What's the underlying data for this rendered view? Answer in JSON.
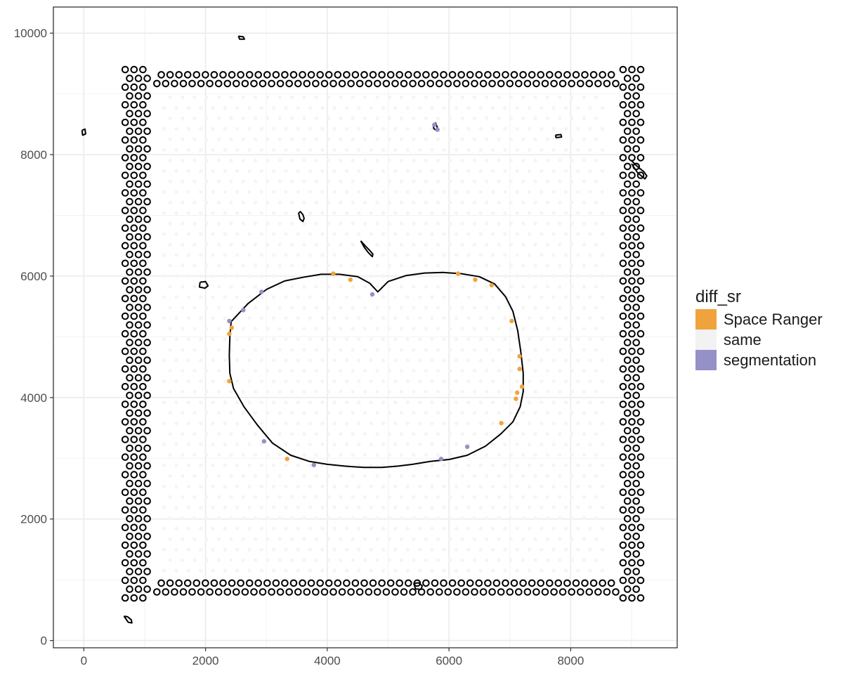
{
  "chart_data": {
    "type": "scatter",
    "title": "",
    "xlabel": "",
    "ylabel": "",
    "xlim": [
      -500,
      9750
    ],
    "ylim": [
      -120,
      10430
    ],
    "x_ticks": [
      0,
      2000,
      4000,
      6000,
      8000
    ],
    "y_ticks": [
      0,
      2000,
      4000,
      6000,
      8000,
      10000
    ],
    "x_tick_labels": [
      "0",
      "2000",
      "4000",
      "6000",
      "8000"
    ],
    "y_tick_labels": [
      "0",
      "2000",
      "4000",
      "6000",
      "8000",
      "10000"
    ],
    "grid": true,
    "legend": {
      "position": "right",
      "title": "diff_sr",
      "entries": [
        {
          "label": "Space Ranger",
          "color": "#F0A33C"
        },
        {
          "label": "same",
          "color": "#F4F4F4"
        },
        {
          "label": "segmentation",
          "color": "#9590C5"
        }
      ]
    },
    "spot_grid": {
      "x_range": [
        1320,
        8600
      ],
      "y_range": [
        1150,
        9020
      ],
      "spacing": 200,
      "category": "same",
      "color": "#F4F4F4"
    },
    "series": [
      {
        "name": "Space Ranger",
        "color": "#F0A33C",
        "points": [
          [
            4100,
            6040
          ],
          [
            4380,
            5940
          ],
          [
            6150,
            6040
          ],
          [
            6430,
            5940
          ],
          [
            6700,
            5850
          ],
          [
            7030,
            5260
          ],
          [
            7160,
            4680
          ],
          [
            7160,
            4470
          ],
          [
            7200,
            4180
          ],
          [
            7120,
            4080
          ],
          [
            7100,
            3980
          ],
          [
            6860,
            3580
          ],
          [
            2430,
            5150
          ],
          [
            2390,
            5050
          ],
          [
            2390,
            4270
          ],
          [
            3340,
            2990
          ]
        ]
      },
      {
        "name": "segmentation",
        "color": "#9590C5",
        "points": [
          [
            5760,
            8490
          ],
          [
            5810,
            8410
          ],
          [
            4740,
            5700
          ],
          [
            2920,
            5740
          ],
          [
            2620,
            5440
          ],
          [
            2390,
            5260
          ],
          [
            2960,
            3280
          ],
          [
            3780,
            2890
          ],
          [
            5870,
            2990
          ],
          [
            6300,
            3190
          ]
        ]
      }
    ],
    "outlines": [
      {
        "shape": "tissue-outline",
        "x": [
          2420,
          2700,
          3000,
          3300,
          3600,
          3900,
          4200,
          4500,
          4700,
          4830,
          5000,
          5300,
          5600,
          5900,
          6200,
          6500,
          6750,
          6930,
          7050,
          7130,
          7180,
          7220,
          7220,
          7170,
          7050,
          6850,
          6600,
          6300,
          6000,
          5700,
          5400,
          5150,
          4900,
          4600,
          4300,
          4000,
          3700,
          3400,
          3100,
          2850,
          2630,
          2460,
          2400,
          2390,
          2400,
          2420
        ],
        "y": [
          5250,
          5550,
          5780,
          5920,
          5980,
          6030,
          6030,
          5990,
          5880,
          5740,
          5910,
          6010,
          6050,
          6060,
          6040,
          5990,
          5870,
          5660,
          5420,
          5100,
          4750,
          4400,
          4100,
          3850,
          3600,
          3400,
          3200,
          3050,
          2980,
          2950,
          2900,
          2870,
          2850,
          2850,
          2870,
          2900,
          2950,
          3050,
          3250,
          3550,
          3850,
          4150,
          4400,
          4700,
          5000,
          5250
        ]
      },
      {
        "shape": "fragment",
        "x": [
          3530,
          3550,
          3600,
          3620,
          3600,
          3560,
          3530
        ],
        "y": [
          7040,
          6940,
          6900,
          6950,
          7010,
          7060,
          7040
        ]
      },
      {
        "shape": "fragment",
        "x": [
          4550,
          4620,
          4700,
          4750,
          4740,
          4680,
          4610,
          4550
        ],
        "y": [
          6580,
          6500,
          6420,
          6360,
          6320,
          6380,
          6470,
          6580
        ]
      },
      {
        "shape": "fragment",
        "x": [
          5740,
          5780,
          5810,
          5790,
          5750,
          5740
        ],
        "y": [
          8500,
          8520,
          8440,
          8400,
          8430,
          8500
        ]
      },
      {
        "shape": "fragment",
        "x": [
          2540,
          2620,
          2640,
          2560,
          2540
        ],
        "y": [
          9950,
          9940,
          9900,
          9900,
          9950
        ]
      },
      {
        "shape": "fragment",
        "x": [
          -30,
          20,
          30,
          -20,
          -30
        ],
        "y": [
          8400,
          8420,
          8340,
          8320,
          8400
        ]
      },
      {
        "shape": "fragment",
        "x": [
          7750,
          7840,
          7850,
          7760,
          7750
        ],
        "y": [
          8320,
          8330,
          8290,
          8280,
          8320
        ]
      },
      {
        "shape": "fragment",
        "x": [
          9000,
          9100,
          9200,
          9250,
          9220,
          9100,
          9000
        ],
        "y": [
          7900,
          7800,
          7720,
          7650,
          7600,
          7700,
          7850
        ]
      },
      {
        "shape": "fragment",
        "x": [
          660,
          720,
          780,
          790,
          730,
          660
        ],
        "y": [
          400,
          390,
          340,
          290,
          300,
          400
        ]
      },
      {
        "shape": "fragment",
        "x": [
          5420,
          5500,
          5560,
          5540,
          5450,
          5420
        ],
        "y": [
          940,
          950,
          900,
          840,
          850,
          940
        ]
      },
      {
        "shape": "fragment",
        "x": [
          1910,
          2000,
          2040,
          1990,
          1900,
          1910
        ],
        "y": [
          5900,
          5910,
          5840,
          5800,
          5820,
          5900
        ]
      }
    ],
    "ring_spots": {
      "color": "#000000",
      "fill": "none",
      "bands": [
        {
          "x_range": [
            680,
            1100
          ],
          "y_range": [
            700,
            9420
          ]
        },
        {
          "x_range": [
            8860,
            9200
          ],
          "y_range": [
            700,
            9420
          ]
        },
        {
          "x_range": [
            1200,
            8760
          ],
          "y_range": [
            9170,
            9420
          ]
        },
        {
          "x_range": [
            1200,
            8760
          ],
          "y_range": [
            800,
            1050
          ]
        }
      ]
    }
  }
}
